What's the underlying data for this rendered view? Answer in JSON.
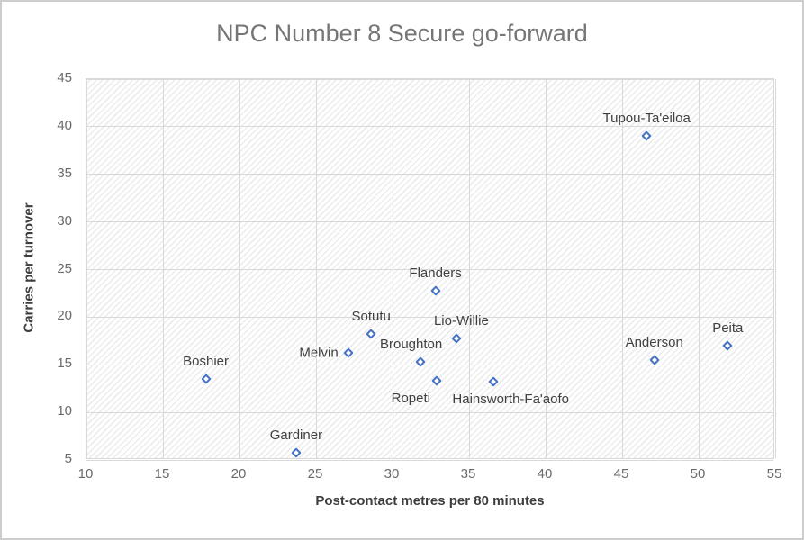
{
  "window": {
    "background_color": "#ffffff",
    "border_color": "#cdcdcd"
  },
  "chart_data": {
    "type": "scatter",
    "title": "NPC Number 8 Secure go-forward",
    "xlabel": "Post-contact metres per 80 minutes",
    "ylabel": "Carries per turnover",
    "xlim": [
      10,
      55
    ],
    "ylim": [
      5,
      45
    ],
    "x_ticks": [
      10,
      15,
      20,
      25,
      30,
      35,
      40,
      45,
      50,
      55
    ],
    "y_ticks": [
      5,
      10,
      15,
      20,
      25,
      30,
      35,
      40,
      45
    ],
    "grid": true,
    "legend": false,
    "marker": {
      "shape": "open-diamond",
      "color": "#4472C4"
    },
    "colors": {
      "title_text": "#767676",
      "axis_title_text": "#3d3d3d",
      "tick_text": "#6a6a6a",
      "gridline": "#d9d9d9",
      "plot_pattern_stripe": "#ececec",
      "data_label_text": "#404040"
    },
    "points": [
      {
        "label": "Boshier",
        "x": 17.8,
        "y": 13.5,
        "label_pos": "above",
        "dx": 0
      },
      {
        "label": "Gardiner",
        "x": 23.7,
        "y": 5.8,
        "label_pos": "above",
        "dx": 0
      },
      {
        "label": "Melvin",
        "x": 27.1,
        "y": 16.3,
        "label_pos": "left",
        "dx": 0
      },
      {
        "label": "Sotutu",
        "x": 28.6,
        "y": 18.2,
        "label_pos": "above",
        "dx": 0
      },
      {
        "label": "Broughton",
        "x": 31.8,
        "y": 15.3,
        "label_pos": "above",
        "dx": -10
      },
      {
        "label": "Flanders",
        "x": 32.8,
        "y": 22.8,
        "label_pos": "above",
        "dx": 0
      },
      {
        "label": "Ropeti",
        "x": 32.9,
        "y": 13.3,
        "label_pos": "below",
        "dx": -29
      },
      {
        "label": "Lio-Willie",
        "x": 34.2,
        "y": 17.8,
        "label_pos": "above",
        "dx": 5
      },
      {
        "label": "Hainsworth-Fa'aofo",
        "x": 36.6,
        "y": 13.2,
        "label_pos": "below",
        "dx": 19
      },
      {
        "label": "Tupou-Ta'eiloa",
        "x": 46.6,
        "y": 39.0,
        "label_pos": "above",
        "dx": 0
      },
      {
        "label": "Anderson",
        "x": 47.1,
        "y": 15.5,
        "label_pos": "above",
        "dx": 0
      },
      {
        "label": "Peita",
        "x": 51.9,
        "y": 17.0,
        "label_pos": "above",
        "dx": 0
      }
    ]
  }
}
